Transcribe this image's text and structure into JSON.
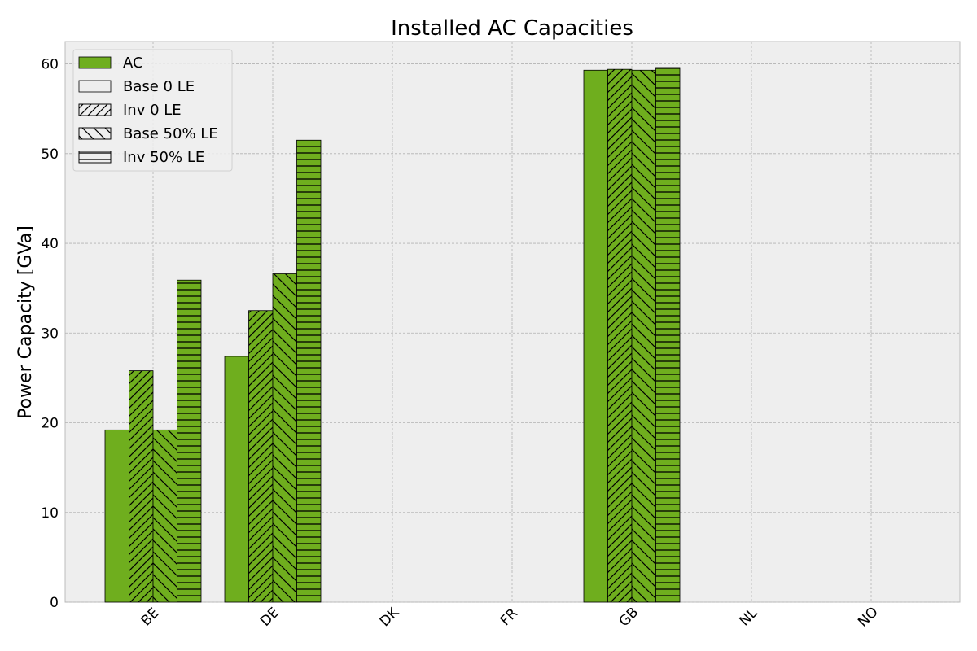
{
  "chart_data": {
    "type": "bar",
    "title": "Installed AC Capacities",
    "xlabel": "",
    "ylabel": "Power Capacity [GVa]",
    "ylim": [
      0,
      62.5
    ],
    "yticks": [
      0,
      10,
      20,
      30,
      40,
      50,
      60
    ],
    "grid": true,
    "legend_position": "top-left",
    "categories": [
      "BE",
      "DE",
      "DK",
      "FR",
      "GB",
      "NL",
      "NO"
    ],
    "bar_color": "#6fae1e",
    "legend": {
      "color_entry": "AC",
      "pattern_entries": [
        {
          "name": "Base 0 LE",
          "pattern": "none"
        },
        {
          "name": "Inv 0 LE",
          "pattern": "diagonal-forward"
        },
        {
          "name": "Base 50% LE",
          "pattern": "diagonal-back"
        },
        {
          "name": "Inv 50% LE",
          "pattern": "horizontal"
        }
      ]
    },
    "series": [
      {
        "name": "Base 0 LE",
        "pattern": "none",
        "values": [
          19.2,
          27.4,
          0,
          0,
          59.3,
          0,
          0
        ]
      },
      {
        "name": "Inv 0 LE",
        "pattern": "diagonal-forward",
        "values": [
          25.8,
          32.5,
          0,
          0,
          59.4,
          0,
          0
        ]
      },
      {
        "name": "Base 50% LE",
        "pattern": "diagonal-back",
        "values": [
          19.2,
          36.6,
          0,
          0,
          59.3,
          0,
          0
        ]
      },
      {
        "name": "Inv 50% LE",
        "pattern": "horizontal",
        "values": [
          35.9,
          51.5,
          0,
          0,
          59.6,
          0,
          0
        ]
      }
    ]
  }
}
